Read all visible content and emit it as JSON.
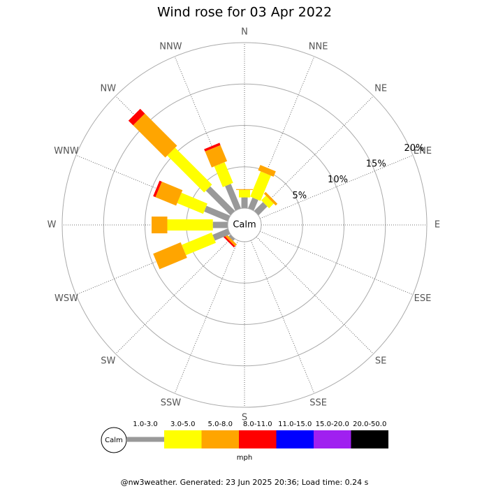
{
  "chart_data": {
    "type": "windrose",
    "title": "Wind rose for 03 Apr 2022",
    "calm_label": "Calm",
    "categories": [
      "N",
      "NNE",
      "NE",
      "ENE",
      "E",
      "ESE",
      "SE",
      "SSE",
      "S",
      "SSW",
      "SW",
      "WSW",
      "W",
      "WNW",
      "NW",
      "NNW"
    ],
    "rlim": [
      0,
      20
    ],
    "rticks": [
      {
        "value": 5,
        "label": "5%"
      },
      {
        "value": 10,
        "label": "10%"
      },
      {
        "value": 15,
        "label": "15%"
      },
      {
        "value": 20,
        "label": "20%"
      }
    ],
    "series": [
      {
        "name": "1.0-3.0",
        "color": "#999999",
        "values": [
          1.3,
          1.4,
          1.5,
          0,
          0,
          0,
          0,
          0,
          0,
          0,
          0.3,
          2.0,
          1.8,
          3.1,
          4.2,
          3.2
        ]
      },
      {
        "name": "3.0-5.0",
        "color": "#ffff00",
        "values": [
          0.9,
          3.3,
          0.8,
          0,
          0,
          0,
          0,
          0,
          0,
          0,
          0,
          3.9,
          5.5,
          3.4,
          6.3,
          2.7
        ]
      },
      {
        "name": "5.0-8.0",
        "color": "#ffa500",
        "values": [
          0.1,
          0.7,
          0.3,
          0,
          0,
          0,
          0,
          0,
          0,
          0,
          0.3,
          3.6,
          1.9,
          2.7,
          5.5,
          2.1
        ]
      },
      {
        "name": "8.0-11.0",
        "color": "#ff0000",
        "values": [
          0,
          0,
          0,
          0,
          0,
          0,
          0,
          0,
          0,
          0,
          0.2,
          0,
          0,
          0.3,
          0.8,
          0.3
        ]
      },
      {
        "name": "11.0-15.0",
        "color": "#0000ff",
        "values": [
          0,
          0,
          0,
          0,
          0,
          0,
          0,
          0,
          0,
          0,
          0,
          0,
          0,
          0,
          0,
          0
        ]
      },
      {
        "name": "15.0-20.0",
        "color": "#a020f0",
        "values": [
          0,
          0,
          0,
          0,
          0,
          0,
          0,
          0,
          0,
          0,
          0,
          0,
          0,
          0,
          0,
          0
        ]
      },
      {
        "name": "20.0-50.0",
        "color": "#000000",
        "values": [
          0,
          0,
          0,
          0,
          0,
          0,
          0,
          0,
          0,
          0,
          0,
          0,
          0,
          0,
          0,
          0
        ]
      }
    ],
    "unit": "mph",
    "footer": "@nw3weather.  Generated: 23 Jun 2025 20:36; Load time: 0.24 s"
  }
}
